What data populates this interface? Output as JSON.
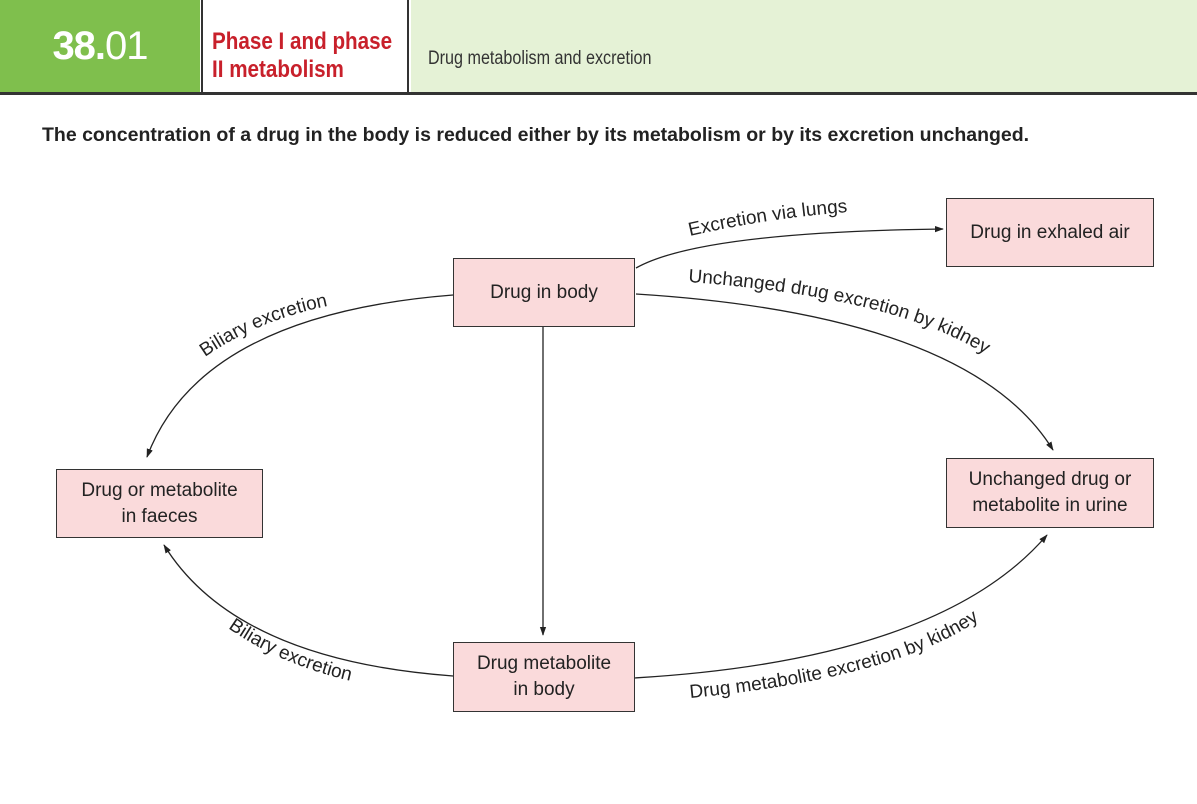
{
  "header": {
    "number_major": "38.",
    "number_minor": "01",
    "title_line1": "Phase I and phase",
    "title_line2": "II metabolism",
    "subtitle": "Drug metabolism and excretion"
  },
  "lead_text": "The concentration of a drug in the body is reduced either by its metabolism or by its excretion unchanged.",
  "nodes": {
    "drug_in_body": "Drug in body",
    "drug_in_exhaled_air": "Drug in exhaled air",
    "faeces_line1": "Drug or metabolite",
    "faeces_line2": "in faeces",
    "urine_line1": "Unchanged drug or",
    "urine_line2": "metabolite in urine",
    "metabolite_line1": "Drug metabolite",
    "metabolite_line2": "in body"
  },
  "edges": {
    "lungs": "Excretion via lungs",
    "biliary_top": "Biliary excretion",
    "kidney_unchanged": "Unchanged drug excretion by kidney",
    "biliary_bottom": "Biliary excretion",
    "kidney_metabolite": "Drug metabolite excretion by kidney"
  },
  "colors": {
    "header_green": "#7fbf4d",
    "header_light_green": "#e5f2d6",
    "title_red": "#c8202b",
    "node_fill": "#fadadb"
  }
}
